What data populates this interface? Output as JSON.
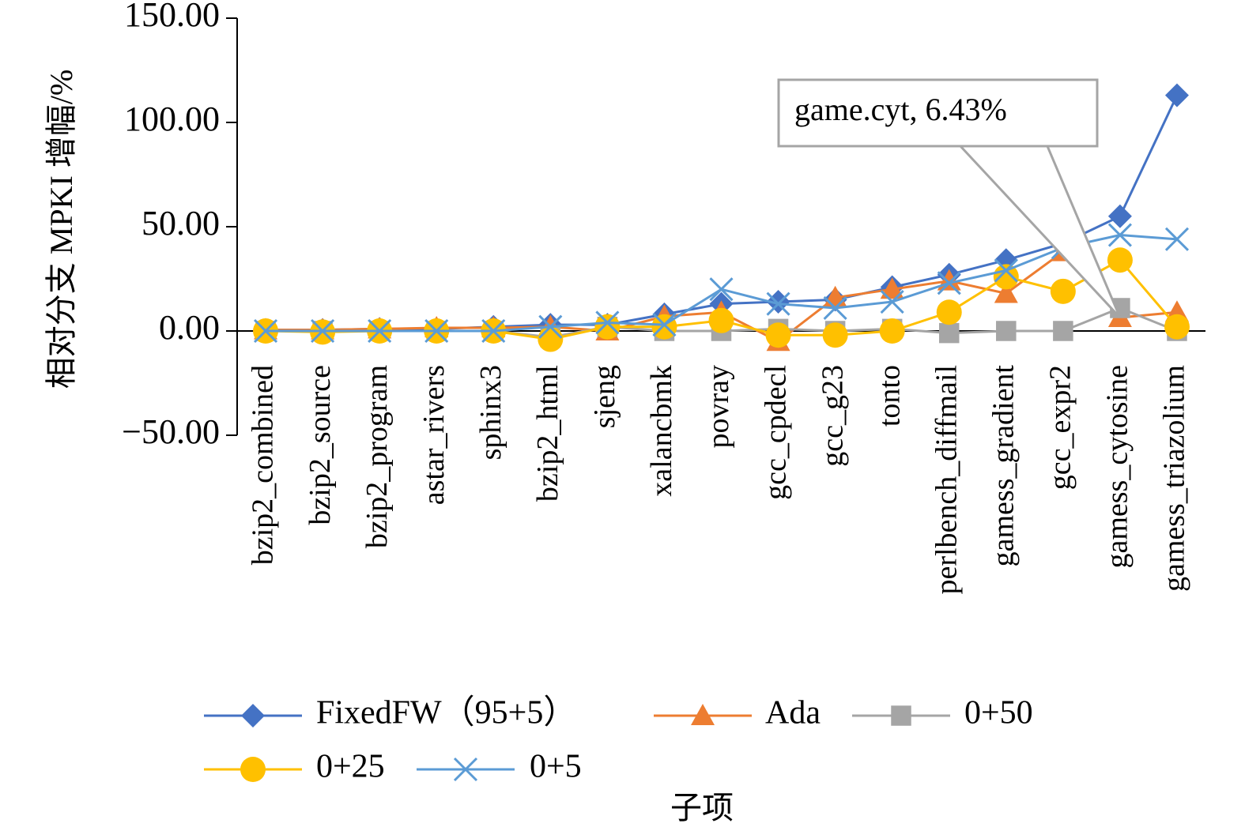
{
  "chart_data": {
    "type": "line",
    "xlabel": "子项",
    "ylabel": "相对分支 MPKI 增幅/%",
    "ylim": [
      -50,
      150
    ],
    "yticks": [
      -50,
      0,
      50,
      100,
      150
    ],
    "ytick_labels": [
      "−50.00",
      "0.00",
      "50.00",
      "100.00",
      "150.00"
    ],
    "grid": false,
    "legend_position": "bottom",
    "categories": [
      "bzip2_combined",
      "bzip2_source",
      "bzip2_program",
      "astar_rivers",
      "sphinx3",
      "bzip2_html",
      "sjeng",
      "xalancbmk",
      "povray",
      "gcc_cpdecl",
      "gcc_g23",
      "tonto",
      "perlbench_diffmail",
      "gamess_gradient",
      "gcc_expr2",
      "gamess_cytosine",
      "gamess_triazolium"
    ],
    "series": [
      {
        "name": "FixedFW（95+5）",
        "color": "#4472C4",
        "marker": "diamond",
        "values": [
          0.5,
          0.5,
          1,
          1,
          2,
          3,
          3,
          8,
          13,
          14,
          15,
          21,
          27,
          34,
          42,
          55,
          113
        ]
      },
      {
        "name": "Ada",
        "color": "#ED7D31",
        "marker": "triangle",
        "values": [
          0.5,
          0.5,
          1,
          1.5,
          1.5,
          2,
          0,
          7,
          9,
          -5,
          16,
          20,
          24,
          18,
          38,
          6.43,
          9
        ]
      },
      {
        "name": "0+50",
        "color": "#A5A5A5",
        "marker": "square",
        "values": [
          0,
          0,
          0,
          0,
          0,
          -3,
          2,
          0,
          0,
          1,
          0,
          1,
          -1,
          0,
          0,
          11,
          0
        ]
      },
      {
        "name": "0+25",
        "color": "#FFC000",
        "marker": "circle",
        "values": [
          0,
          -0.5,
          0,
          0,
          0,
          -4,
          2,
          2,
          5,
          -2,
          -2,
          0,
          9,
          26,
          19,
          34,
          2
        ]
      },
      {
        "name": "0+5",
        "color": "#5B9BD5",
        "marker": "x",
        "values": [
          0,
          0,
          0,
          0,
          0,
          2,
          4,
          3,
          20,
          13,
          11,
          14,
          23,
          29,
          40,
          46,
          44
        ]
      }
    ],
    "annotations": [
      {
        "text": "game.cyt, 6.43%",
        "category": "gamess_cytosine",
        "value": 6.43
      }
    ]
  }
}
